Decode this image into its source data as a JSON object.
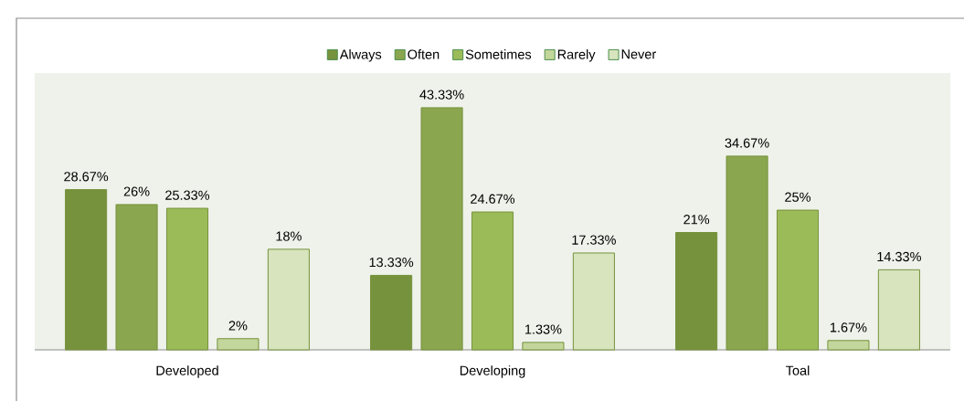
{
  "chart_data": {
    "type": "bar",
    "categories": [
      "Developed",
      "Developing",
      "Toal"
    ],
    "series": [
      {
        "name": "Always",
        "color": "#76923c",
        "values": [
          28.67,
          13.33,
          21
        ],
        "value_labels": [
          "28.67%",
          "13.33%",
          "21%"
        ]
      },
      {
        "name": "Often",
        "color": "#8aa64f",
        "values": [
          26,
          43.33,
          34.67
        ],
        "value_labels": [
          "26%",
          "43.33%",
          "34.67%"
        ]
      },
      {
        "name": "Sometimes",
        "color": "#9bbb59",
        "values": [
          25.33,
          24.67,
          25
        ],
        "value_labels": [
          "25.33%",
          "24.67%",
          "25%"
        ]
      },
      {
        "name": "Rarely",
        "color": "#c3d69b",
        "values": [
          2,
          1.33,
          1.67
        ],
        "value_labels": [
          "2%",
          "1.33%",
          "1.67%"
        ]
      },
      {
        "name": "Never",
        "color": "#d7e4bd",
        "values": [
          18,
          17.33,
          14.33
        ],
        "value_labels": [
          "18%",
          "17.33%",
          "14.33%"
        ]
      }
    ],
    "legend": "top"
  }
}
